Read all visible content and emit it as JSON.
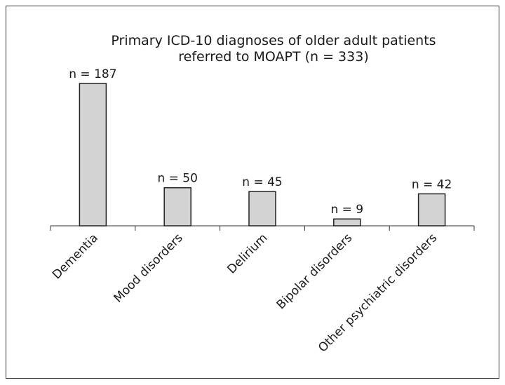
{
  "chart_data": {
    "type": "bar",
    "title": [
      "Primary ICD-10 diagnoses of older adult patients",
      "referred to MOAPT (n = 333)"
    ],
    "categories": [
      "Dementia",
      "Mood disorders",
      "Delirium",
      "Bipolar disorders",
      "Other psychiatric disorders"
    ],
    "values": [
      187,
      50,
      45,
      9,
      42
    ],
    "value_labels": [
      "n = 187",
      "n = 50",
      "n = 45",
      "n = 9",
      "n = 42"
    ],
    "color": "#d3d3d3"
  }
}
